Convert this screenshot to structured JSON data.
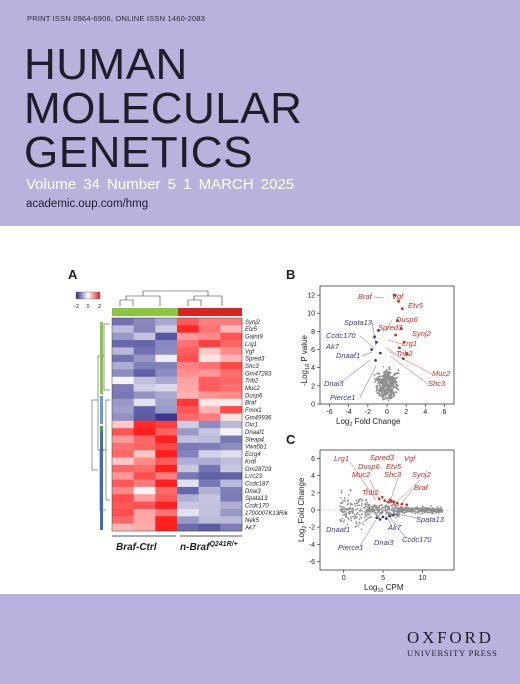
{
  "journal": {
    "issn": "PRINT ISSN 0964-6906, ONLINE ISSN 1460-2083",
    "title_lines": [
      "HUMAN",
      "MOLECULAR",
      "GENETICS"
    ],
    "issue": "Volume 34   Number 5   1 MARCH 2025",
    "website": "academic.oup.com/hmg",
    "publisher_name": "OXFORD",
    "publisher_sub": "UNIVERSITY PRESS"
  },
  "figure": {
    "panel_a": {
      "label": "A",
      "scale": {
        "min": "-2",
        "mid": "0",
        "max": "2"
      },
      "genes": [
        "Synj2",
        "Etv5",
        "Galnt9",
        "Lrg1",
        "Vgf",
        "Spred3",
        "Shc3",
        "Gm47283",
        "Trib2",
        "Muc2",
        "Dusp6",
        "Braf",
        "Fmnl1",
        "Gm49936",
        "Oxr1",
        "Dnaaf1",
        "Steap4",
        "Vwa5b1",
        "Ecrg4",
        "Krt8",
        "Gm28729",
        "Lrrc23",
        "Ccdc187",
        "Dnai3",
        "Spata13",
        "Ccdc170",
        "1700007K13Rik",
        "Nek5",
        "Ak7"
      ],
      "group1_label": "Braf-Ctrl",
      "group2_label": "n-Braf",
      "group2_superscript": "Q241R/+"
    },
    "panel_b": {
      "label": "B",
      "xlabel": "Log",
      "xlabel_sub": "2",
      "xlabel_rest": " Fold Change",
      "ylabel": "-Log",
      "ylabel_sub": "10",
      "ylabel_rest": " P value",
      "xticks": [
        "-6",
        "-4",
        "-2",
        "0",
        "2",
        "4",
        "6"
      ],
      "yticks": [
        "12",
        "10",
        "8",
        "6",
        "4",
        "2",
        "0"
      ],
      "up_genes": [
        "Braf",
        "Vgf",
        "Etv5",
        "Dusp6",
        "Spred3",
        "Synj2",
        "Lrg1",
        "Trib2",
        "Muc2",
        "Shc3"
      ],
      "down_genes": [
        "Spata13",
        "Ccdc170",
        "Ak7",
        "Dnaaf1",
        "Dnai3",
        "Pierce1"
      ]
    },
    "panel_c": {
      "label": "C",
      "xlabel": "Log",
      "xlabel_sub": "10",
      "xlabel_rest": " CPM",
      "ylabel": "Log",
      "ylabel_sub": "2",
      "ylabel_rest": " Fold Change",
      "xticks": [
        "0",
        "5",
        "10"
      ],
      "yticks": [
        "6",
        "4",
        "2",
        "0",
        "-2",
        "-4",
        "-6"
      ],
      "up_genes": [
        "Lrg1",
        "Spred3",
        "Vgf",
        "Dusp6",
        "Etv5",
        "Muc2",
        "Shc3",
        "Synj2",
        "Trib2",
        "Braf"
      ],
      "down_genes": [
        "Dnaaf1",
        "Ak7",
        "Spata13",
        "Pierce1",
        "Dnai3",
        "Ccdc170"
      ]
    }
  },
  "colors": {
    "band": "#b8b3dc",
    "title_text": "#1e1e2a",
    "heat_high": "#e02020",
    "heat_low": "#2c2c8c",
    "up": "#d8261f",
    "down": "#3a3a9c",
    "ctrl_bar": "#8cc63f",
    "mut_bar": "#d8261f"
  }
}
